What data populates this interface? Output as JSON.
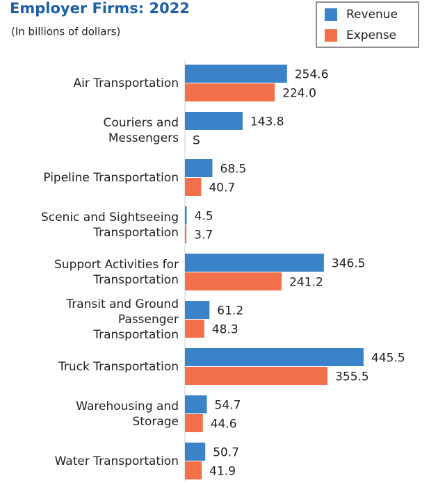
{
  "chart_data": {
    "type": "hbar",
    "title": "Employer Firms: 2022",
    "subtitle": "(In billions of dollars)",
    "categories": [
      "Air Transportation",
      "Couriers and\nMessengers",
      "Pipeline Transportation",
      "Scenic and Sightseeing\nTransportation",
      "Support Activities for\nTransportation",
      "Transit and Ground\nPassenger\nTransportation",
      "Truck Transportation",
      "Warehousing and\nStorage",
      "Water Transportation"
    ],
    "series": [
      {
        "name": "Revenue",
        "color": "#3b83c8",
        "values": [
          254.6,
          143.8,
          68.5,
          4.5,
          346.5,
          61.2,
          445.5,
          54.7,
          50.7
        ],
        "value_labels": [
          "254.6",
          "143.8",
          "68.5",
          "4.5",
          "346.5",
          "61.2",
          "445.5",
          "54.7",
          "50.7"
        ]
      },
      {
        "name": "Expense",
        "color": "#f2704a",
        "values": [
          224.0,
          null,
          40.7,
          3.7,
          241.2,
          48.3,
          355.5,
          44.6,
          41.9
        ],
        "value_labels": [
          "224.0",
          "S",
          "40.7",
          "3.7",
          "241.2",
          "48.3",
          "355.5",
          "44.6",
          "41.9"
        ]
      }
    ],
    "legend": "top-right"
  }
}
